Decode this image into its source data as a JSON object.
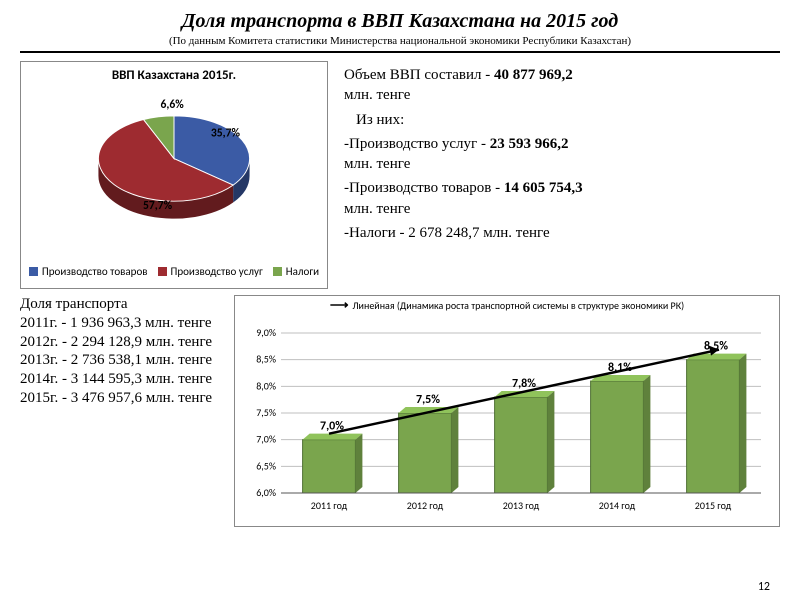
{
  "title": "Доля транспорта в ВВП Казахстана на 2015 год",
  "subtitle": "(По данным Комитета статистики Министерства национальной экономики Республики Казахстан)",
  "pie_chart": {
    "title": "ВВП Казахстана 2015г.",
    "type": "pie",
    "slices": [
      {
        "label": "Производство товаров",
        "value": 35.7,
        "color": "#3b5ba5",
        "text": "35,7%"
      },
      {
        "label": "Производство услуг",
        "value": 57.7,
        "color": "#9e2b30",
        "text": "57,7%"
      },
      {
        "label": "Налоги",
        "value": 6.6,
        "color": "#7aa54d",
        "text": "6,6%"
      }
    ],
    "label_font": 12,
    "title_font": 13,
    "legend_font": 11,
    "background": "#ffffff",
    "border": "#888888"
  },
  "summary": {
    "l1a": "Объем ВВП составил - ",
    "l1b": "40 877 969,2",
    "l1c": "млн. тенге",
    "sub": "Из них:",
    "s1a": "-Производство услуг - ",
    "s1b": "23 593 966,2",
    "s1c": "млн. тенге",
    "s2a": "-Производство товаров - ",
    "s2b": "14 605 754,3",
    "s2c": "млн. тенге",
    "s3a": "-Налоги - 2 678 248,7 млн. тенге"
  },
  "transport": {
    "head": "Доля транспорта",
    "rows": [
      "2011г. - 1 936 963,3 млн. тенге",
      "2012г. - 2 294 128,9 млн. тенге",
      "2013г. - 2 736 538,1 млн. тенге",
      "2014г. - 3 144 595,3 млн. тенге",
      "2015г. - 3 476 957,6 млн. тенге"
    ]
  },
  "bar_chart": {
    "type": "bar",
    "legend": "Линейная (Динамика роста транспортной системы в структуре экономики РК)",
    "categories": [
      "2011 год",
      "2012 год",
      "2013 год",
      "2014 год",
      "2015 год"
    ],
    "values": [
      7.0,
      7.5,
      7.8,
      8.1,
      8.5
    ],
    "value_labels": [
      "7,0%",
      "7,5%",
      "7,8%",
      "8,1%",
      "8,5%"
    ],
    "ylim": [
      6.0,
      9.0
    ],
    "ytick_step": 0.5,
    "yticks": [
      "6,0%",
      "6,5%",
      "7,0%",
      "7,5%",
      "8,0%",
      "8,5%",
      "9,0%"
    ],
    "bar_color": "#7aa54d",
    "bar_border": "#4e6f32",
    "trend_color": "#000000",
    "grid_color": "#bfbfbf",
    "background": "#ffffff",
    "border": "#888888",
    "axis_font": 10,
    "value_font": 12,
    "bar_width": 0.55
  },
  "page": "12"
}
